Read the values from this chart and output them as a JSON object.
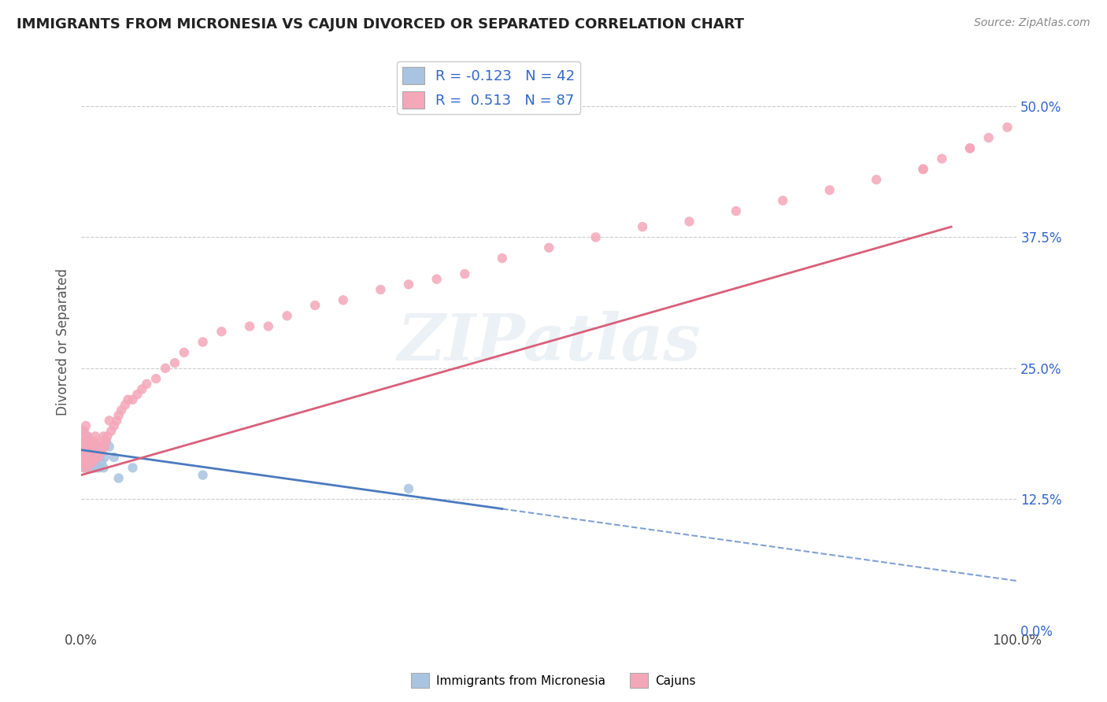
{
  "title": "IMMIGRANTS FROM MICRONESIA VS CAJUN DIVORCED OR SEPARATED CORRELATION CHART",
  "source": "Source: ZipAtlas.com",
  "ylabel": "Divorced or Separated",
  "legend_blue_label": "Immigrants from Micronesia",
  "legend_pink_label": "Cajuns",
  "R_blue": -0.123,
  "N_blue": 42,
  "R_pink": 0.513,
  "N_pink": 87,
  "blue_color": "#a8c4e0",
  "pink_color": "#f4a7b9",
  "blue_line_color": "#4a7abf",
  "pink_line_color": "#d95f7a",
  "watermark": "ZIPatlas",
  "xmin": 0.0,
  "xmax": 1.0,
  "ymin": 0.0,
  "ymax": 0.55,
  "yticks": [
    0.0,
    0.125,
    0.25,
    0.375,
    0.5
  ],
  "ytick_labels": [
    "0.0%",
    "12.5%",
    "25.0%",
    "37.5%",
    "50.0%"
  ],
  "xtick_labels": [
    "0.0%",
    "100.0%"
  ],
  "blue_line_x0": 0.0,
  "blue_line_y0": 0.172,
  "blue_line_x1": 1.0,
  "blue_line_y1": 0.047,
  "pink_line_x0": 0.0,
  "pink_line_y0": 0.148,
  "pink_line_x1": 0.93,
  "pink_line_y1": 0.385,
  "blue_scatter_x": [
    0.001,
    0.002,
    0.003,
    0.003,
    0.004,
    0.004,
    0.005,
    0.005,
    0.006,
    0.006,
    0.007,
    0.007,
    0.008,
    0.008,
    0.009,
    0.009,
    0.01,
    0.01,
    0.011,
    0.011,
    0.012,
    0.012,
    0.013,
    0.013,
    0.014,
    0.015,
    0.015,
    0.016,
    0.017,
    0.018,
    0.019,
    0.02,
    0.022,
    0.024,
    0.025,
    0.027,
    0.03,
    0.035,
    0.04,
    0.055,
    0.35,
    0.13
  ],
  "blue_scatter_y": [
    0.16,
    0.19,
    0.155,
    0.175,
    0.17,
    0.18,
    0.16,
    0.175,
    0.165,
    0.185,
    0.17,
    0.155,
    0.165,
    0.18,
    0.175,
    0.165,
    0.155,
    0.17,
    0.165,
    0.175,
    0.155,
    0.165,
    0.17,
    0.155,
    0.165,
    0.16,
    0.17,
    0.155,
    0.165,
    0.17,
    0.155,
    0.165,
    0.16,
    0.155,
    0.165,
    0.18,
    0.175,
    0.165,
    0.145,
    0.155,
    0.135,
    0.148
  ],
  "pink_scatter_x": [
    0.001,
    0.001,
    0.002,
    0.002,
    0.003,
    0.003,
    0.003,
    0.004,
    0.004,
    0.005,
    0.005,
    0.005,
    0.006,
    0.006,
    0.007,
    0.007,
    0.008,
    0.008,
    0.009,
    0.009,
    0.01,
    0.01,
    0.011,
    0.011,
    0.012,
    0.012,
    0.013,
    0.013,
    0.014,
    0.015,
    0.015,
    0.016,
    0.017,
    0.017,
    0.018,
    0.019,
    0.02,
    0.021,
    0.022,
    0.023,
    0.024,
    0.025,
    0.026,
    0.028,
    0.03,
    0.032,
    0.035,
    0.038,
    0.04,
    0.043,
    0.047,
    0.05,
    0.055,
    0.06,
    0.065,
    0.07,
    0.08,
    0.09,
    0.1,
    0.11,
    0.13,
    0.15,
    0.18,
    0.2,
    0.22,
    0.25,
    0.28,
    0.32,
    0.35,
    0.38,
    0.41,
    0.45,
    0.5,
    0.55,
    0.6,
    0.65,
    0.7,
    0.75,
    0.8,
    0.85,
    0.9,
    0.92,
    0.95,
    0.97,
    0.99,
    0.95,
    0.9
  ],
  "pink_scatter_y": [
    0.16,
    0.175,
    0.165,
    0.185,
    0.155,
    0.17,
    0.19,
    0.175,
    0.165,
    0.16,
    0.18,
    0.195,
    0.165,
    0.175,
    0.155,
    0.185,
    0.165,
    0.17,
    0.175,
    0.165,
    0.16,
    0.18,
    0.165,
    0.175,
    0.16,
    0.17,
    0.175,
    0.165,
    0.18,
    0.17,
    0.185,
    0.165,
    0.17,
    0.175,
    0.165,
    0.17,
    0.175,
    0.18,
    0.17,
    0.175,
    0.185,
    0.175,
    0.18,
    0.185,
    0.2,
    0.19,
    0.195,
    0.2,
    0.205,
    0.21,
    0.215,
    0.22,
    0.22,
    0.225,
    0.23,
    0.235,
    0.24,
    0.25,
    0.255,
    0.265,
    0.275,
    0.285,
    0.29,
    0.29,
    0.3,
    0.31,
    0.315,
    0.325,
    0.33,
    0.335,
    0.34,
    0.355,
    0.365,
    0.375,
    0.385,
    0.39,
    0.4,
    0.41,
    0.42,
    0.43,
    0.44,
    0.45,
    0.46,
    0.47,
    0.48,
    0.46,
    0.44
  ]
}
